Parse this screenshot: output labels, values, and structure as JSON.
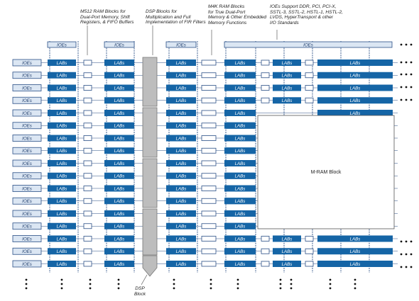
{
  "labels": {
    "lab": "LABs",
    "ioe": "IOEs",
    "mram": "M-RAM Block"
  },
  "annotations": {
    "m512": "M512 RAM Blocks for\nDual-Port Memory, Shift\nRegisters, & FIFO Buffers",
    "dsp": "DSP Blocks for\nMultiplication and Full\nImplementation of FIR Filters",
    "m4k": "M4K RAM Blocks\nfor True Dual-Port\nMemory & Other Embedded\nMemory Functions",
    "ioe_support": "IOEs Support DDR, PCI, PCI-X,\nSSTL-3, SSTL-2, HSTL-1, HSTL-2,\nLVDS, HyperTransport & other\nI/O Standards",
    "dsp_block": "DSP\nBlock"
  },
  "colors": {
    "lab_fill": "#1565a6",
    "lab_text": "#ffffff",
    "ioe_fill": "#dbe6f3",
    "ioe_border": "#2a4f86",
    "routing_line": "#2a4f86",
    "dsp_fill": "#bdbdbd",
    "mram_fill": "#ffffff",
    "dot_color": "#111111"
  }
}
